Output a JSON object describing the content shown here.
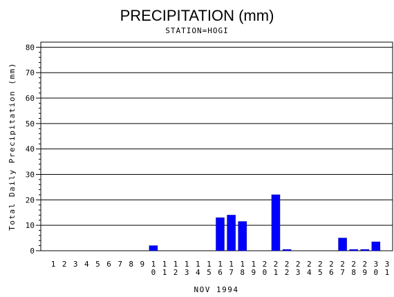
{
  "chart_data": {
    "type": "bar",
    "title": "PRECIPITATION (mm)",
    "subtitle": "STATION=HOGI",
    "xlabel": "NOV 1994",
    "ylabel": "Total Daily Precipitation (mm)",
    "ylim": [
      0,
      82
    ],
    "yticks": [
      0,
      10,
      20,
      30,
      40,
      50,
      60,
      70,
      80
    ],
    "grid": true,
    "bar_color": "#0000ff",
    "categories": [
      "1",
      "2",
      "3",
      "4",
      "5",
      "6",
      "7",
      "8",
      "9",
      "10",
      "11",
      "12",
      "13",
      "14",
      "15",
      "16",
      "17",
      "18",
      "19",
      "20",
      "21",
      "22",
      "23",
      "24",
      "25",
      "26",
      "27",
      "28",
      "29",
      "30",
      "31"
    ],
    "values": [
      0,
      0,
      0,
      0,
      0,
      0,
      0,
      0,
      0,
      2,
      0,
      0,
      0,
      0,
      0,
      13,
      14,
      11.5,
      0,
      0,
      22,
      0.5,
      0,
      0,
      0,
      0,
      5,
      0.5,
      0.5,
      3.5,
      0
    ]
  }
}
